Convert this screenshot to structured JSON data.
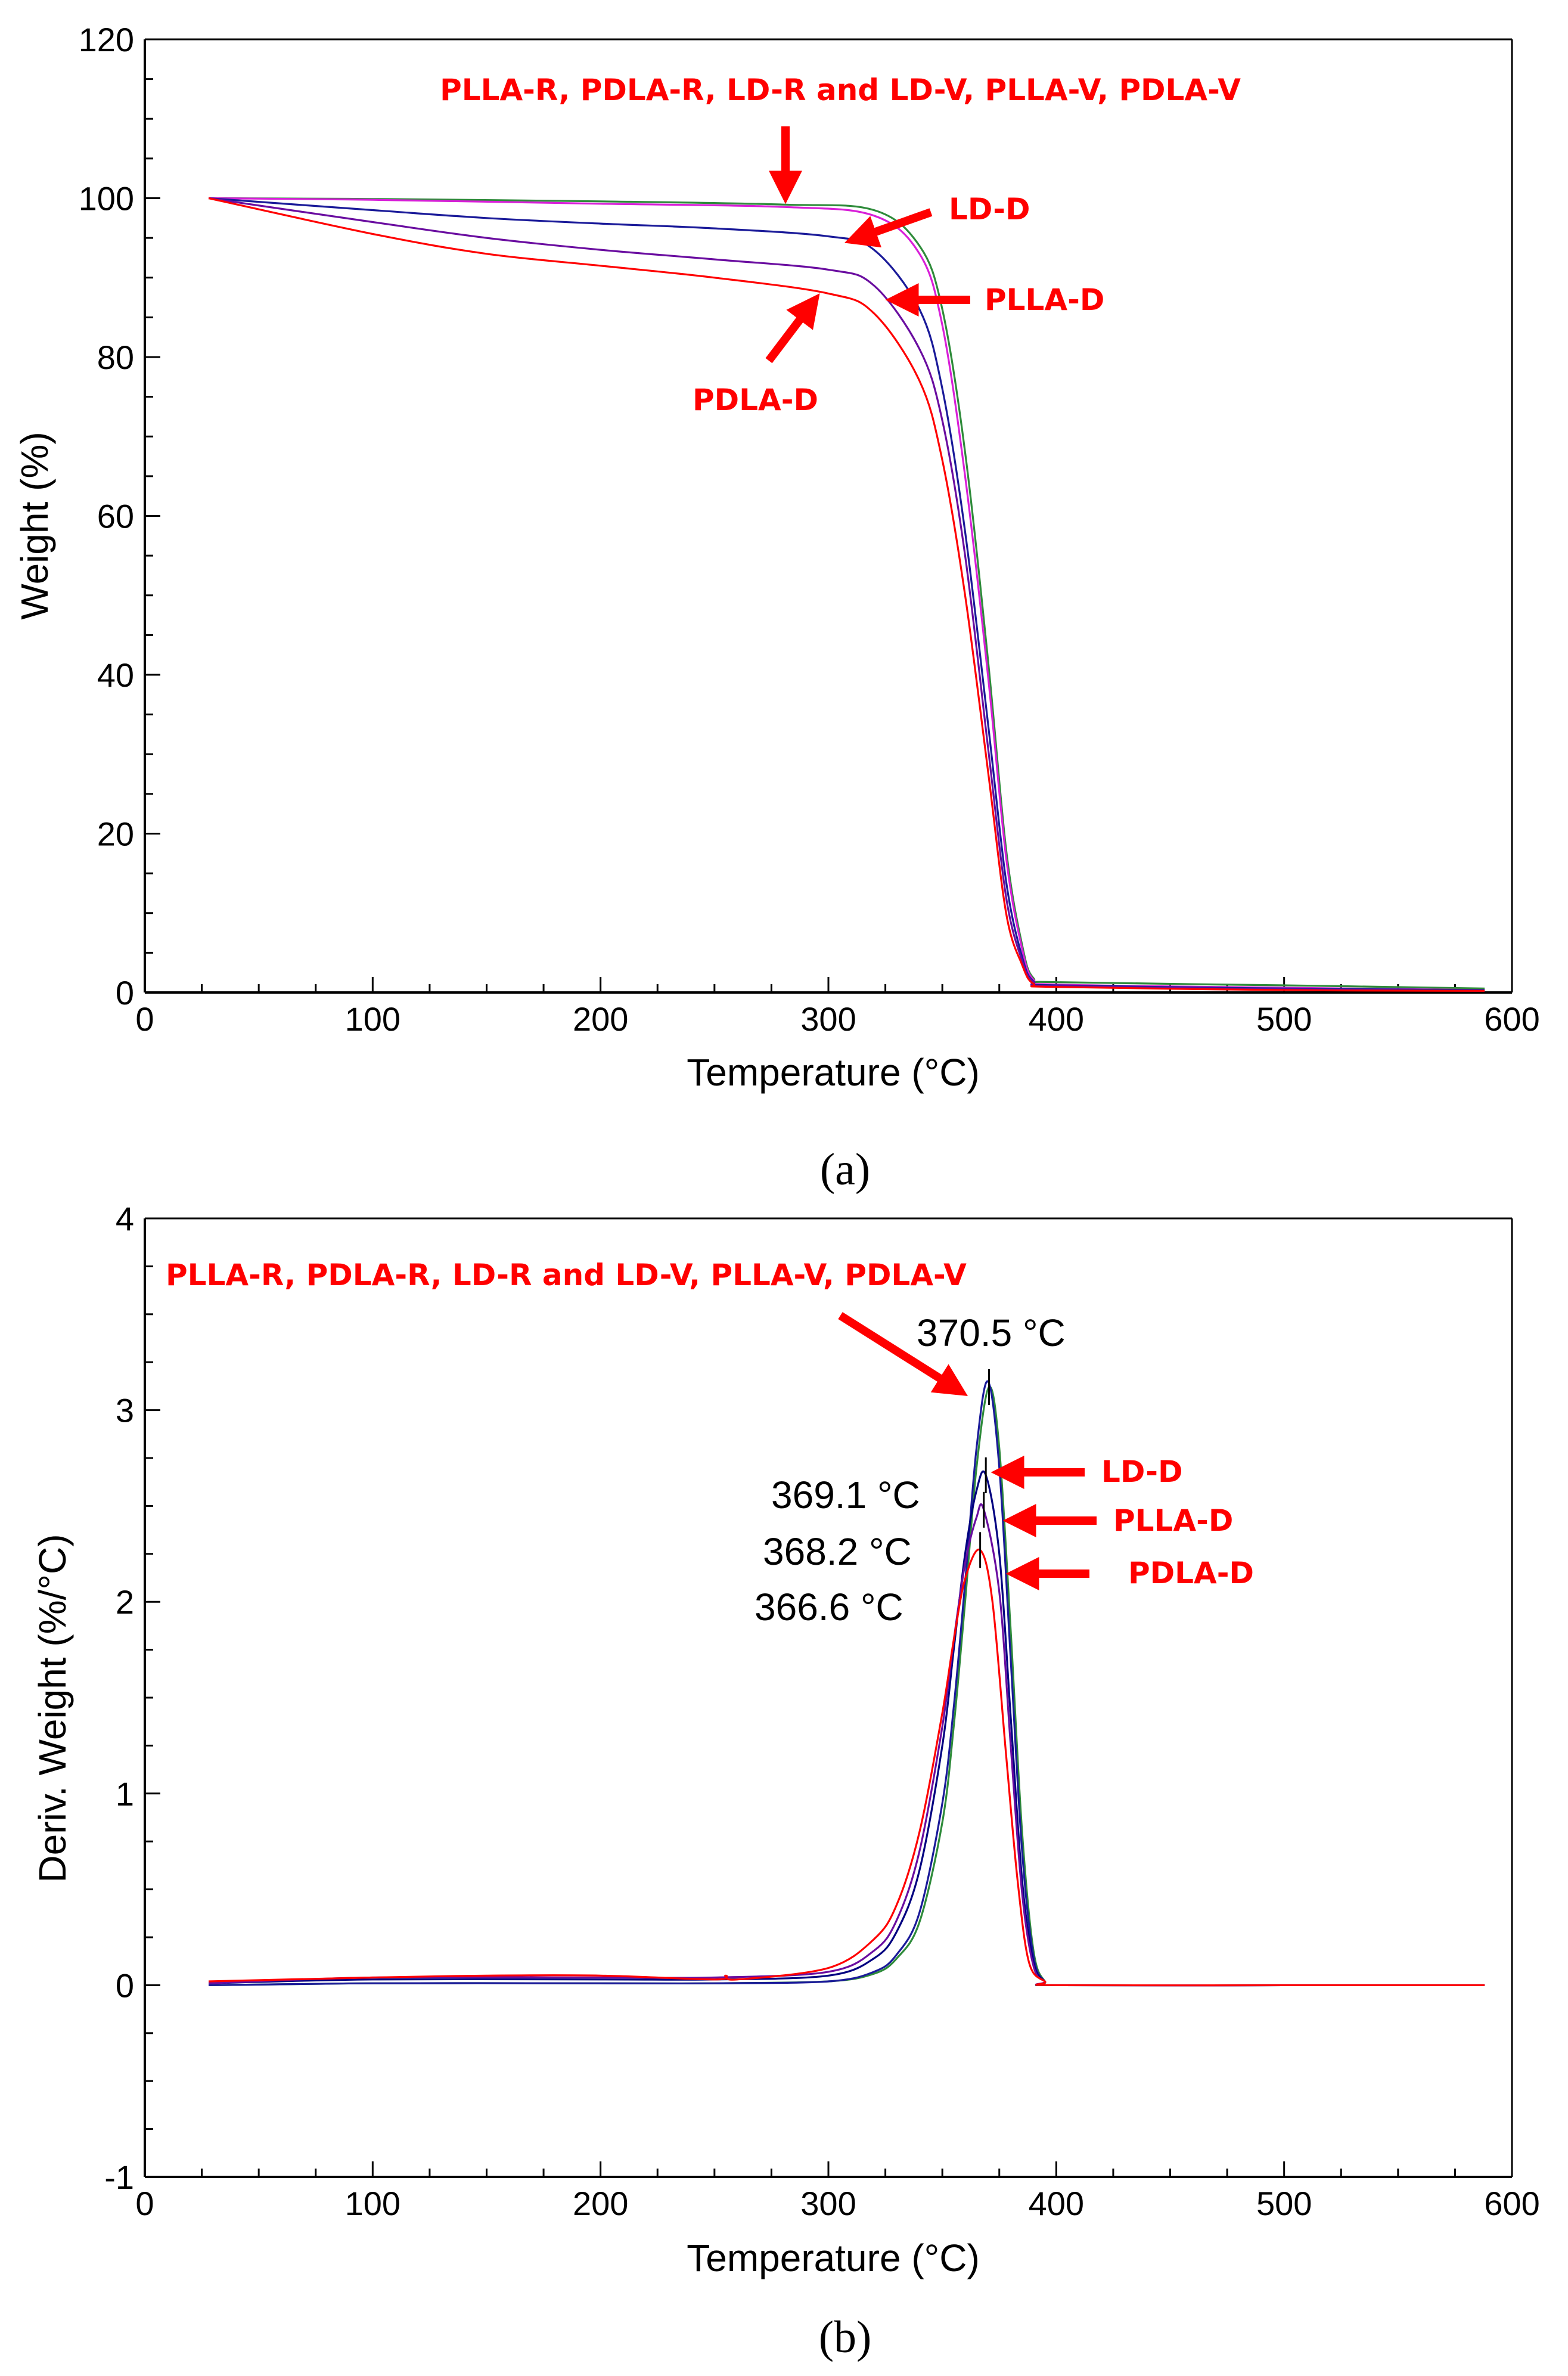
{
  "chart_data": [
    {
      "id": "a",
      "panel_label": "(a)",
      "type": "line",
      "xlabel": "Temperature (°C)",
      "ylabel": "Weight (%)",
      "xlim": [
        0,
        600
      ],
      "ylim": [
        0,
        120
      ],
      "xticks": [
        0,
        100,
        200,
        300,
        400,
        500,
        600
      ],
      "yticks": [
        0,
        20,
        40,
        60,
        80,
        100,
        120
      ],
      "grid": false,
      "series": [
        {
          "name": "PLLA-R, PDLA-R, LD-R and LD-V, PLLA-V, PDLA-V (green)",
          "color": "#2e8b3a",
          "x": [
            28,
            100,
            200,
            280,
            320,
            340,
            350,
            360,
            370,
            378,
            385,
            390,
            400,
            500,
            588
          ],
          "y": [
            100,
            99.9,
            99.6,
            99.2,
            98.5,
            94,
            86,
            68,
            42,
            18,
            6,
            1.8,
            1.3,
            0.9,
            0.5
          ]
        },
        {
          "name": "PLLA-R, PDLA-R, LD-R and LD-V, PLLA-V, PDLA-V (magenta)",
          "color": "#d81fd8",
          "x": [
            28,
            100,
            200,
            280,
            320,
            340,
            350,
            360,
            370,
            378,
            385,
            390,
            400,
            500,
            588
          ],
          "y": [
            100,
            99.8,
            99.3,
            98.9,
            97.8,
            93,
            84,
            65,
            40,
            17,
            5.5,
            1.6,
            1.0,
            0.6,
            0.3
          ]
        },
        {
          "name": "LD-D",
          "color": "#1a1a99",
          "x": [
            28,
            100,
            150,
            200,
            250,
            300,
            320,
            340,
            350,
            360,
            370,
            378,
            385,
            390,
            400,
            500,
            588
          ],
          "y": [
            100,
            98.5,
            97.5,
            96.8,
            96.2,
            95.2,
            93.5,
            86,
            76,
            58,
            34,
            14,
            4.5,
            1.4,
            0.9,
            0.5,
            0.3
          ]
        },
        {
          "name": "PLLA-D",
          "color": "#6a0da0",
          "x": [
            28,
            100,
            150,
            200,
            250,
            300,
            320,
            340,
            350,
            360,
            370,
            378,
            385,
            390,
            400,
            500,
            588
          ],
          "y": [
            100,
            97,
            95,
            93.5,
            92.3,
            91,
            89,
            81,
            72,
            55,
            31,
            12,
            4,
            1.3,
            0.8,
            0.4,
            0.2
          ]
        },
        {
          "name": "PDLA-D",
          "color": "#ff0000",
          "x": [
            28,
            100,
            150,
            200,
            250,
            300,
            320,
            340,
            350,
            360,
            370,
            378,
            385,
            390,
            400,
            500,
            588
          ],
          "y": [
            100,
            95.5,
            93,
            91.5,
            90,
            88,
            85.5,
            77,
            67,
            50,
            28,
            10,
            3.5,
            1.1,
            0.7,
            0.3,
            0.2
          ]
        }
      ],
      "annotations": [
        {
          "text": "PLLA-R, PDLA-R, LD-R and LD-V, PLLA-V, PDLA-V",
          "position": "top-center",
          "arrow_to": [
            282,
            99.3
          ]
        },
        {
          "text": "LD-D",
          "position": "right of curve",
          "arrow_to": [
            310,
            94
          ]
        },
        {
          "text": "PLLA-D",
          "position": "right of curve",
          "arrow_to": [
            330,
            87.5
          ]
        },
        {
          "text": "PDLA-D",
          "position": "below curve",
          "arrow_to": [
            295,
            87.5
          ]
        }
      ]
    },
    {
      "id": "b",
      "panel_label": "(b)",
      "type": "line",
      "xlabel": "Temperature (°C)",
      "ylabel": "Deriv. Weight (%/°C)",
      "xlim": [
        0,
        600
      ],
      "ylim": [
        -1,
        4
      ],
      "xticks": [
        0,
        100,
        200,
        300,
        400,
        500,
        600
      ],
      "yticks": [
        -1,
        0,
        1,
        2,
        3,
        4
      ],
      "grid": false,
      "series": [
        {
          "name": "PLLA-R, PDLA-R, LD-R and LD-V, PLLA-V, PDLA-V (green)",
          "color": "#2e8b3a",
          "x": [
            28,
            100,
            200,
            250,
            300,
            320,
            330,
            340,
            350,
            355,
            360,
            365,
            370.5,
            375,
            380,
            385,
            390,
            395,
            400,
            500,
            588
          ],
          "y": [
            0,
            0.01,
            0.01,
            0.01,
            0.02,
            0.06,
            0.14,
            0.33,
            0.85,
            1.35,
            2.0,
            2.7,
            3.12,
            2.8,
            1.85,
            0.8,
            0.18,
            0.02,
            0,
            0,
            0
          ]
        },
        {
          "name": "PLLA-R, PDLA-R, LD-R and LD-V, PLLA-V, PDLA-V (dark)",
          "color": "#1a1a99",
          "x": [
            28,
            100,
            200,
            250,
            300,
            320,
            330,
            340,
            350,
            355,
            360,
            365,
            370,
            375,
            380,
            385,
            390,
            395,
            400,
            500,
            588
          ],
          "y": [
            0,
            0.01,
            0.01,
            0.01,
            0.02,
            0.07,
            0.16,
            0.38,
            0.95,
            1.45,
            2.1,
            2.8,
            3.15,
            2.7,
            1.7,
            0.7,
            0.15,
            0.02,
            0,
            0,
            0
          ]
        },
        {
          "name": "LD-D",
          "color": "#000080",
          "x": [
            28,
            100,
            200,
            250,
            300,
            320,
            330,
            340,
            350,
            355,
            360,
            365,
            369.1,
            375,
            380,
            385,
            390,
            395,
            400,
            500,
            588
          ],
          "y": [
            0.01,
            0.03,
            0.03,
            0.03,
            0.05,
            0.14,
            0.28,
            0.6,
            1.25,
            1.75,
            2.25,
            2.58,
            2.66,
            2.25,
            1.4,
            0.55,
            0.12,
            0.02,
            0,
            0,
            0
          ]
        },
        {
          "name": "PLLA-D",
          "color": "#6a0da0",
          "x": [
            28,
            100,
            200,
            250,
            300,
            320,
            330,
            340,
            350,
            355,
            360,
            365,
            368.2,
            375,
            380,
            385,
            390,
            395,
            400,
            500,
            588
          ],
          "y": [
            0.01,
            0.04,
            0.04,
            0.04,
            0.07,
            0.18,
            0.34,
            0.7,
            1.35,
            1.8,
            2.2,
            2.44,
            2.48,
            2.05,
            1.25,
            0.48,
            0.1,
            0.02,
            0,
            0,
            0
          ]
        },
        {
          "name": "PDLA-D",
          "color": "#ff0000",
          "x": [
            28,
            100,
            150,
            200,
            250,
            255,
            260,
            300,
            320,
            330,
            340,
            350,
            355,
            360,
            366.6,
            372,
            378,
            383,
            388,
            395,
            400,
            500,
            588
          ],
          "y": [
            0.02,
            0.04,
            0.05,
            0.05,
            0.03,
            0.05,
            0.03,
            0.09,
            0.24,
            0.42,
            0.8,
            1.42,
            1.8,
            2.12,
            2.27,
            2.0,
            1.2,
            0.55,
            0.12,
            0.02,
            0,
            0,
            0
          ]
        }
      ],
      "peak_labels": [
        {
          "text": "370.5  °C",
          "x": 370.5,
          "y": 3.12
        },
        {
          "text": "369.1  °C",
          "x": 369.1,
          "y": 2.66
        },
        {
          "text": "368.2  °C",
          "x": 368.2,
          "y": 2.48
        },
        {
          "text": "366.6  °C",
          "x": 366.6,
          "y": 2.27
        }
      ],
      "annotations": [
        {
          "text": "PLLA-R, PDLA-R, LD-R and LD-V, PLLA-V, PDLA-V",
          "position": "top-left",
          "arrow_to": [
            362,
            3.1
          ]
        },
        {
          "text": "LD-D",
          "position": "right of peak",
          "arrow_to": [
            378,
            2.65
          ]
        },
        {
          "text": "PLLA-D",
          "position": "right of peak",
          "arrow_to": [
            380,
            2.45
          ]
        },
        {
          "text": "PDLA-D",
          "position": "right of peak",
          "arrow_to": [
            382,
            2.2
          ]
        }
      ]
    }
  ]
}
